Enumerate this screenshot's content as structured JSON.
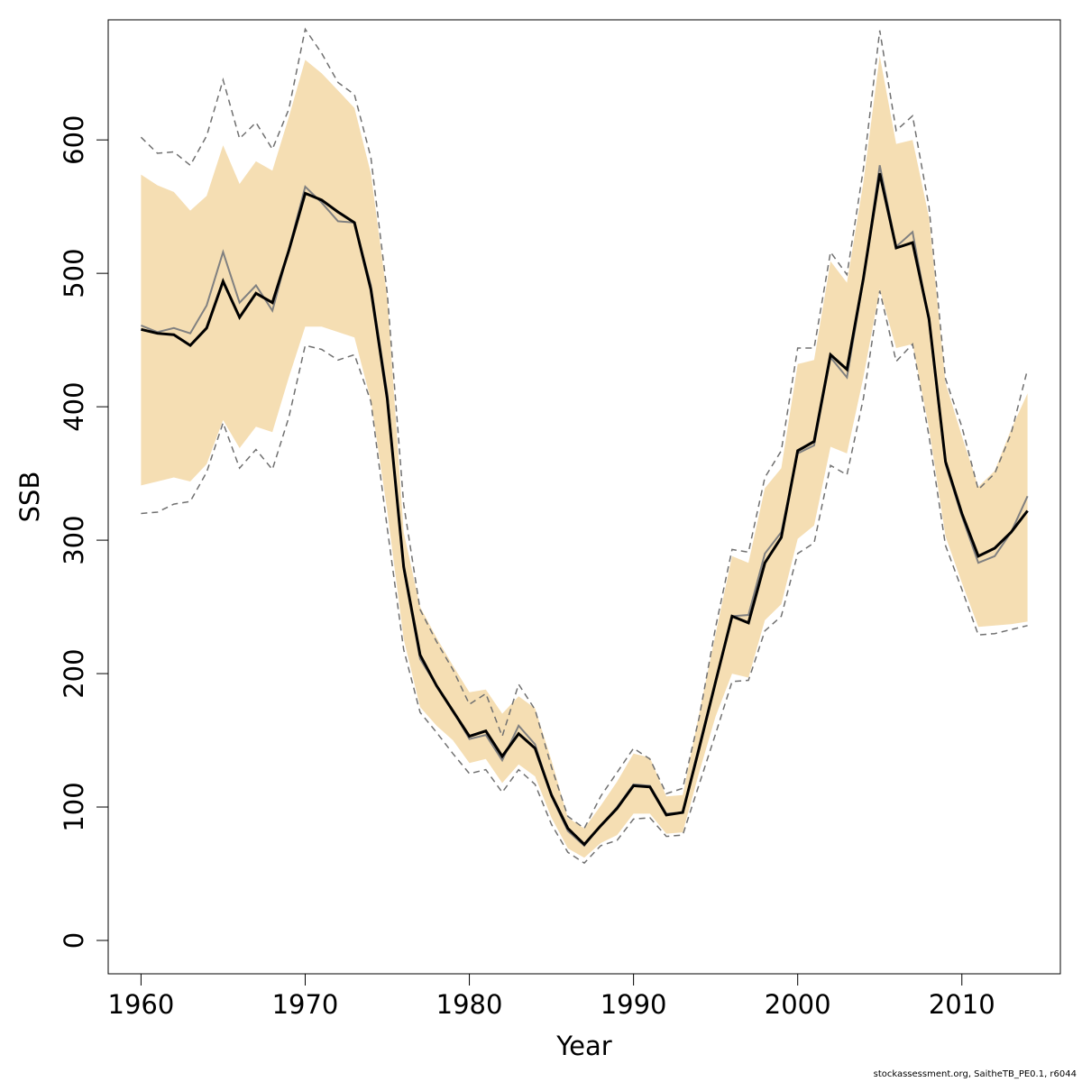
{
  "chart_data": {
    "type": "line",
    "xlabel": "Year",
    "ylabel": "SSB",
    "xlim": [
      1958,
      2016
    ],
    "ylim": [
      -25,
      690
    ],
    "xticks": [
      1960,
      1970,
      1980,
      1990,
      2000,
      2010
    ],
    "yticks": [
      0,
      100,
      200,
      300,
      400,
      500,
      600
    ],
    "grid": false,
    "legend": "none",
    "colors": {
      "band": "#f5deb3",
      "main": "#000000",
      "alt": "#808080",
      "ci": "#707070"
    },
    "x": [
      1960,
      1961,
      1962,
      1963,
      1964,
      1965,
      1966,
      1967,
      1968,
      1969,
      1970,
      1971,
      1972,
      1973,
      1974,
      1975,
      1976,
      1977,
      1978,
      1979,
      1980,
      1981,
      1982,
      1983,
      1984,
      1985,
      1986,
      1987,
      1988,
      1989,
      1990,
      1991,
      1992,
      1993,
      1994,
      1995,
      1996,
      1997,
      1998,
      1999,
      2000,
      2001,
      2002,
      2003,
      2004,
      2005,
      2006,
      2007,
      2008,
      2009,
      2010,
      2011,
      2012,
      2013,
      2014
    ],
    "series": [
      {
        "role": "band_upper",
        "values": [
          574,
          566,
          561,
          547,
          558,
          596,
          567,
          584,
          577,
          617,
          660,
          650,
          637,
          624,
          575,
          482,
          306,
          250,
          227,
          206,
          186,
          188,
          170,
          183,
          174,
          135,
          92,
          84,
          101,
          119,
          140,
          137,
          108,
          109,
          170,
          230,
          288,
          283,
          339,
          354,
          432,
          435,
          509,
          493,
          568,
          663,
          597,
          600,
          542,
          418,
          378,
          340,
          352,
          383,
          410
        ]
      },
      {
        "role": "band_lower",
        "values": [
          341,
          344,
          347,
          344,
          357,
          390,
          369,
          385,
          381,
          422,
          460,
          460,
          456,
          452,
          405,
          322,
          226,
          175,
          161,
          150,
          133,
          136,
          118,
          132,
          123,
          92,
          69,
          62,
          73,
          79,
          95,
          95,
          80,
          81,
          126,
          168,
          200,
          197,
          240,
          252,
          301,
          311,
          370,
          365,
          422,
          488,
          444,
          447,
          384,
          303,
          268,
          235,
          236,
          237,
          239
        ]
      },
      {
        "role": "ci_upper",
        "values": [
          602,
          590,
          591,
          581,
          603,
          645,
          601,
          613,
          593,
          623,
          683,
          665,
          643,
          634,
          587,
          485,
          327,
          248,
          224,
          203,
          177,
          185,
          153,
          192,
          173,
          130,
          93,
          84,
          108,
          126,
          144,
          136,
          110,
          114,
          167,
          235,
          293,
          291,
          347,
          367,
          444,
          444,
          516,
          499,
          578,
          682,
          607,
          618,
          550,
          421,
          385,
          338,
          350,
          380,
          428
        ]
      },
      {
        "role": "ci_lower",
        "values": [
          320,
          321,
          327,
          329,
          351,
          388,
          354,
          368,
          353,
          392,
          446,
          443,
          435,
          439,
          404,
          309,
          218,
          171,
          156,
          140,
          125,
          128,
          111,
          128,
          117,
          87,
          66,
          58,
          71,
          75,
          91,
          92,
          78,
          79,
          117,
          155,
          194,
          195,
          232,
          243,
          290,
          298,
          356,
          349,
          406,
          487,
          434,
          447,
          378,
          296,
          263,
          229,
          230,
          233,
          236
        ]
      },
      {
        "role": "alternative",
        "values": [
          461,
          456,
          459,
          455,
          476,
          516,
          478,
          491,
          472,
          518,
          565,
          553,
          539,
          538,
          491,
          410,
          278,
          211,
          191,
          172,
          151,
          154,
          135,
          161,
          147,
          108,
          82,
          71,
          86,
          100,
          117,
          116,
          95,
          96,
          146,
          194,
          243,
          244,
          290,
          306,
          365,
          371,
          437,
          422,
          495,
          581,
          520,
          531,
          464,
          357,
          318,
          283,
          288,
          306,
          333
        ]
      },
      {
        "role": "estimate",
        "values": [
          458,
          455,
          454,
          446,
          459,
          494,
          467,
          485,
          478,
          517,
          560,
          555,
          546,
          538,
          488,
          406,
          280,
          214,
          191,
          172,
          153,
          157,
          138,
          155,
          144,
          109,
          84,
          72,
          86,
          99,
          116,
          115,
          94,
          96,
          144,
          194,
          243,
          238,
          283,
          302,
          367,
          374,
          439,
          428,
          496,
          575,
          519,
          523,
          466,
          359,
          320,
          288,
          294,
          306,
          322
        ]
      }
    ]
  },
  "footer_text": "stockassessment.org, SaitheTB_PE0.1, r6044"
}
